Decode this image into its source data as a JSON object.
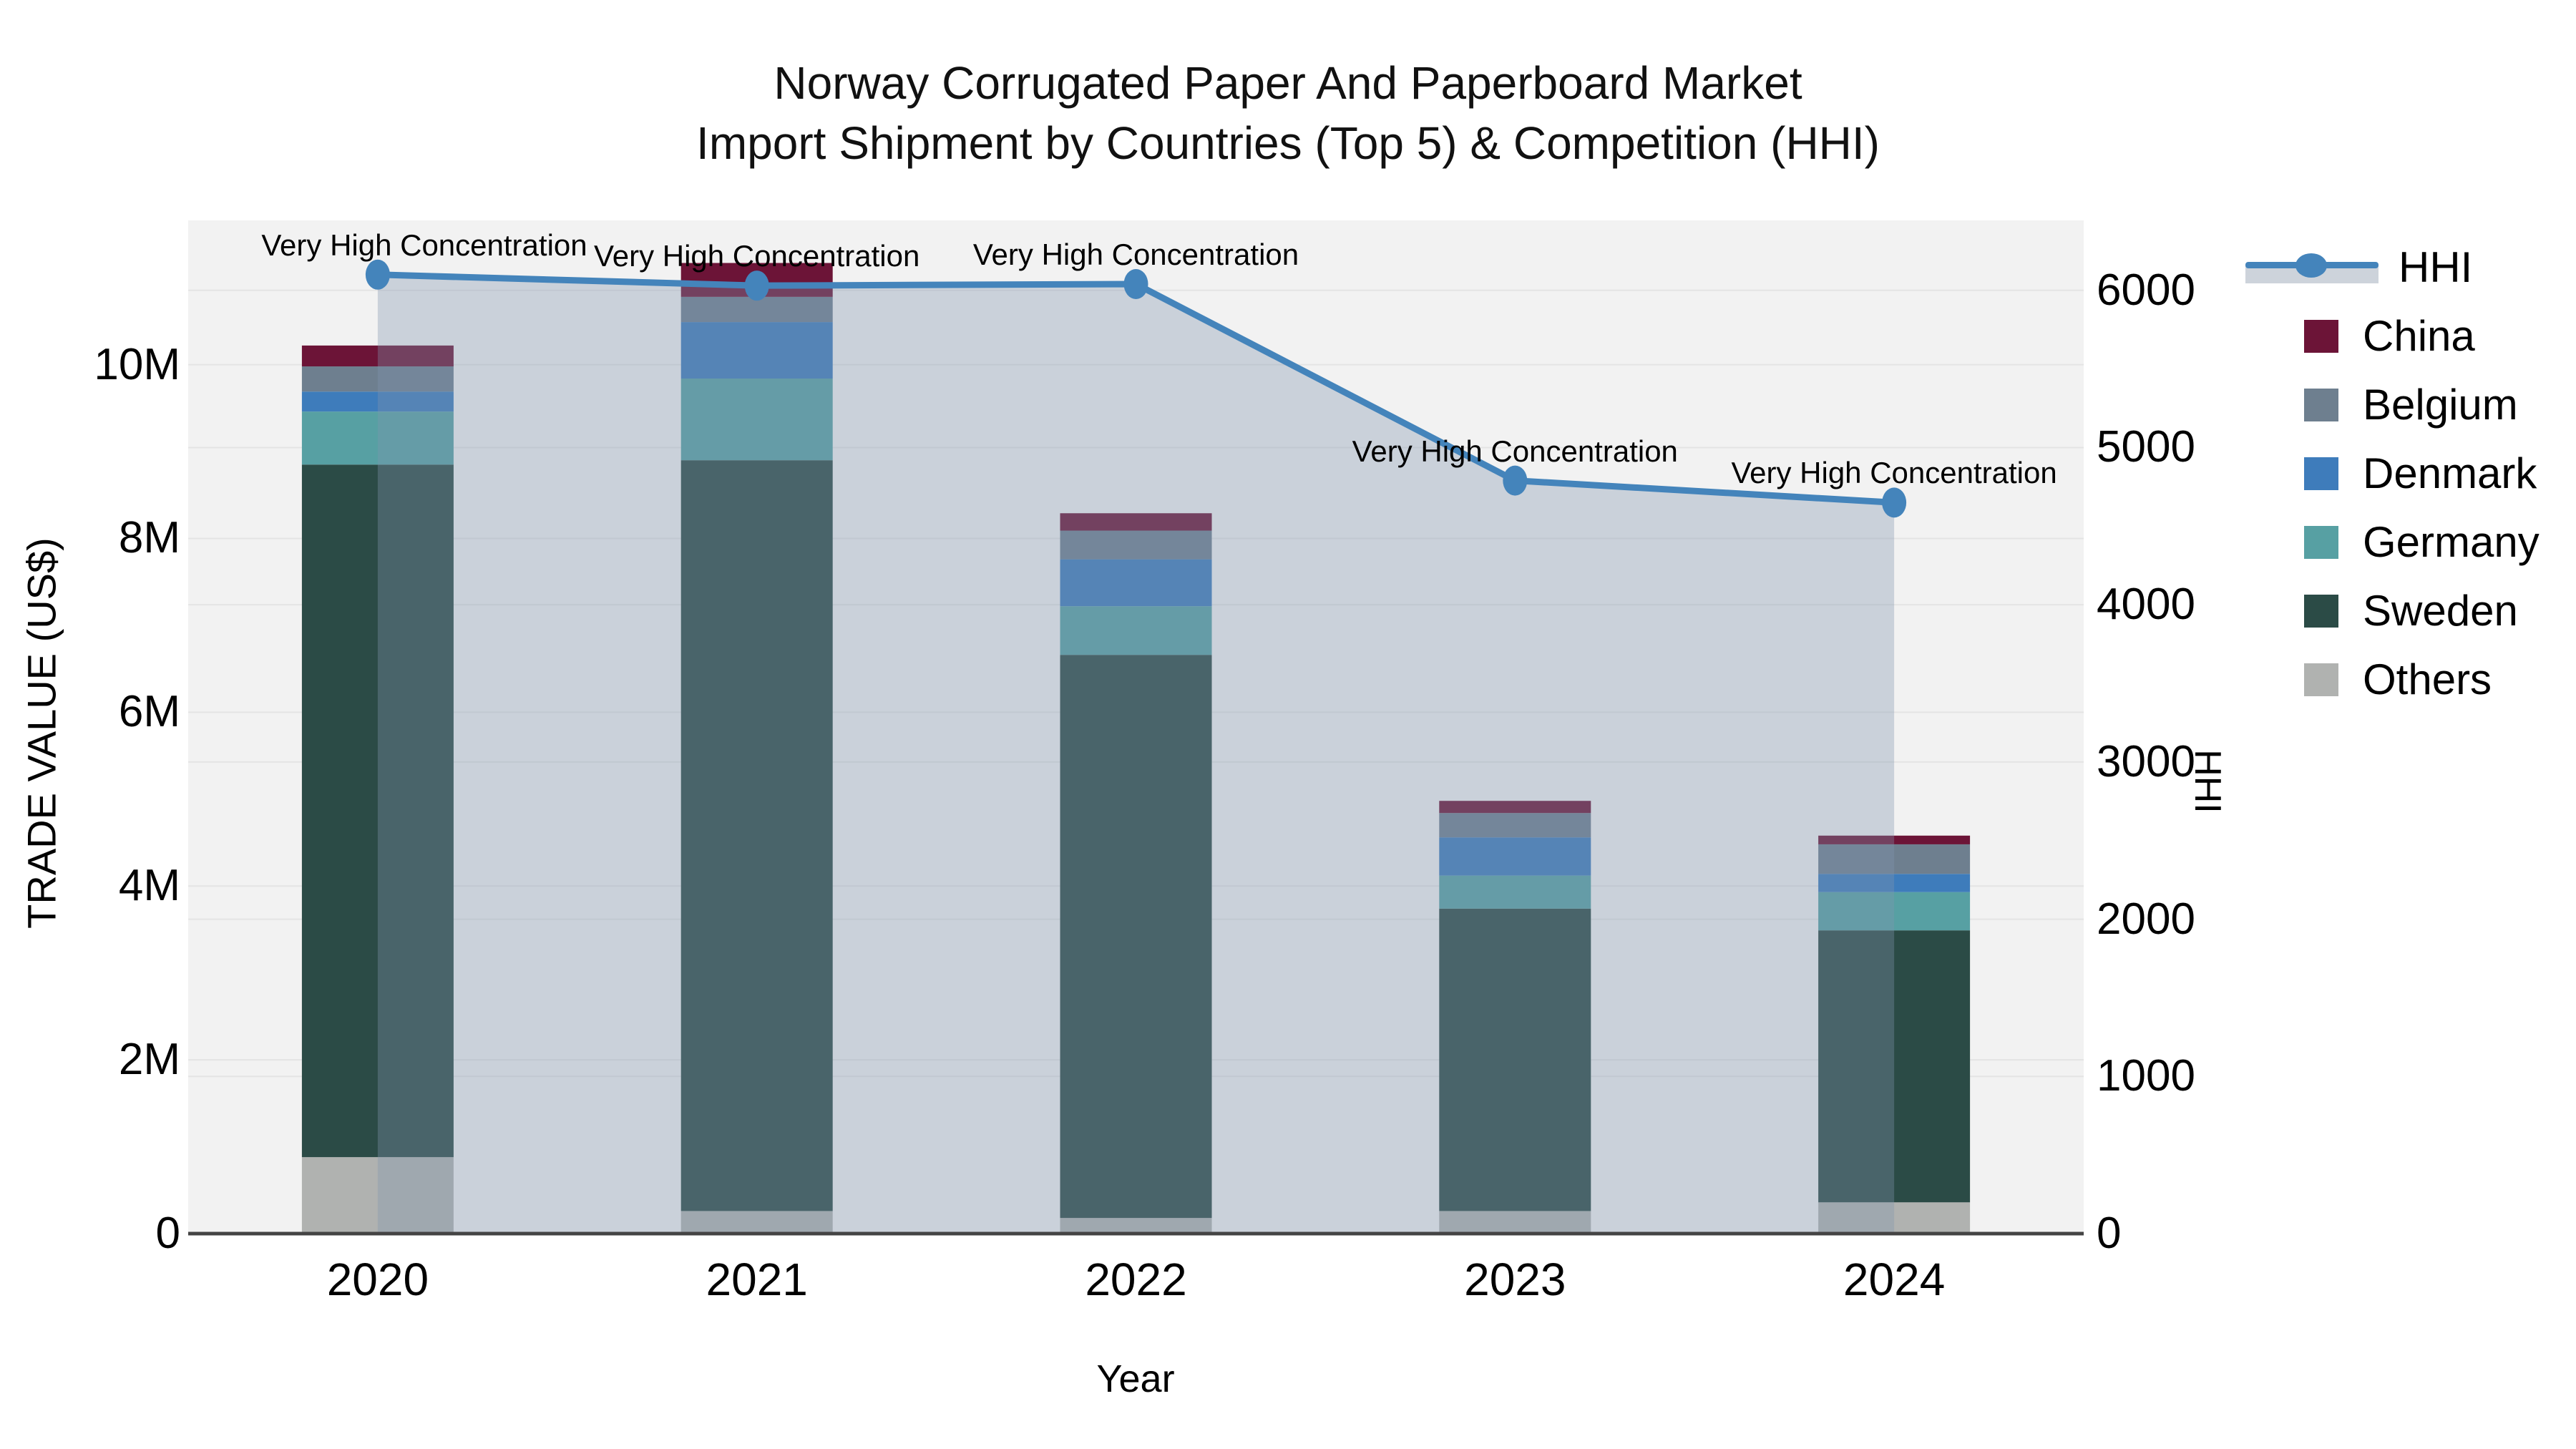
{
  "title": {
    "line1": "Norway Corrugated Paper And Paperboard Market",
    "line2": "Import Shipment by Countries (Top 5) & Competition (HHI)"
  },
  "axes": {
    "left": {
      "title": "TRADE VALUE (US$)",
      "ticks": [
        {
          "label": "0",
          "value": 0
        },
        {
          "label": "2M",
          "value": 2
        },
        {
          "label": "4M",
          "value": 4
        },
        {
          "label": "6M",
          "value": 6
        },
        {
          "label": "8M",
          "value": 8
        },
        {
          "label": "10M",
          "value": 10
        }
      ]
    },
    "right": {
      "title": "HHI",
      "ticks": [
        {
          "label": "0",
          "value": 0
        },
        {
          "label": "1000",
          "value": 1000
        },
        {
          "label": "2000",
          "value": 2000
        },
        {
          "label": "3000",
          "value": 3000
        },
        {
          "label": "4000",
          "value": 4000
        },
        {
          "label": "5000",
          "value": 5000
        },
        {
          "label": "6000",
          "value": 6000
        }
      ]
    },
    "x": {
      "title": "Year"
    }
  },
  "legend": [
    {
      "label": "HHI",
      "symbol": "line",
      "series": "HHI"
    },
    {
      "label": "China",
      "symbol": "swatch",
      "series": "China"
    },
    {
      "label": "Belgium",
      "symbol": "swatch",
      "series": "Belgium"
    },
    {
      "label": "Denmark",
      "symbol": "swatch",
      "series": "Denmark"
    },
    {
      "label": "Germany",
      "symbol": "swatch",
      "series": "Germany"
    },
    {
      "label": "Sweden",
      "symbol": "swatch",
      "series": "Sweden"
    },
    {
      "label": "Others",
      "symbol": "swatch",
      "series": "Others"
    }
  ],
  "colors": {
    "HHI": "#4484BB",
    "China": "#6C1437",
    "Belgium": "#6E7F8F",
    "Denmark": "#3E7CBB",
    "Germany": "#57A0A3",
    "Sweden": "#2B4B46",
    "Others": "#B0B2B0",
    "hhi_area_fill": "rgba(130,148,175,0.35)",
    "plot_bg": "#f2f2f2",
    "gridline": "#e4e4e4",
    "axis_line": "#444444",
    "text": "#000000"
  },
  "chart_data": {
    "type": "stacked-bar+line",
    "title": "Norway Corrugated Paper And Paperboard Market Import Shipment by Countries (Top 5) & Competition (HHI)",
    "categories": [
      "2020",
      "2021",
      "2022",
      "2023",
      "2024"
    ],
    "xlabel": "Year",
    "bar_value_unit": "US$ millions",
    "stack_order": [
      "Others",
      "Sweden",
      "Germany",
      "Denmark",
      "Belgium",
      "China"
    ],
    "series": [
      {
        "name": "Others",
        "values": [
          0.88,
          0.26,
          0.18,
          0.26,
          0.36
        ]
      },
      {
        "name": "Sweden",
        "values": [
          7.97,
          8.64,
          6.48,
          3.48,
          3.13
        ]
      },
      {
        "name": "Germany",
        "values": [
          0.61,
          0.94,
          0.56,
          0.38,
          0.44
        ]
      },
      {
        "name": "Denmark",
        "values": [
          0.23,
          0.65,
          0.54,
          0.44,
          0.21
        ]
      },
      {
        "name": "Belgium",
        "values": [
          0.29,
          0.29,
          0.33,
          0.28,
          0.34
        ]
      },
      {
        "name": "China",
        "values": [
          0.24,
          0.39,
          0.2,
          0.14,
          0.1
        ]
      }
    ],
    "bar_totals": [
      10.22,
      11.17,
      8.29,
      4.98,
      4.58
    ],
    "line_series": {
      "name": "HHI",
      "axis": "right",
      "values": [
        6100,
        6030,
        6040,
        4790,
        4650
      ]
    },
    "annotations": [
      "Very High Concentration",
      "Very High Concentration",
      "Very High Concentration",
      "Very High Concentration",
      "Very High Concentration"
    ],
    "left_axis_range_millions": [
      0,
      11.66
    ],
    "right_axis_range": [
      0,
      6445
    ],
    "grid": true,
    "legend_position": "right-outside"
  }
}
